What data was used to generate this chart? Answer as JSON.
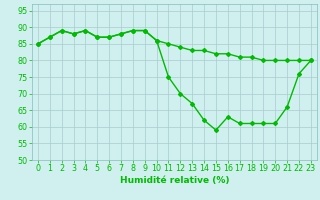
{
  "line1_x": [
    0,
    1,
    2,
    3,
    4,
    5,
    6,
    7,
    8,
    9,
    10,
    11,
    12,
    13,
    14,
    15,
    16,
    17,
    18,
    19,
    20,
    21,
    22,
    23
  ],
  "line1_y": [
    85,
    87,
    89,
    88,
    89,
    87,
    87,
    88,
    89,
    89,
    86,
    75,
    70,
    67,
    62,
    59,
    63,
    61,
    61,
    61,
    61,
    66,
    76,
    80
  ],
  "line2_x": [
    0,
    1,
    2,
    3,
    4,
    5,
    6,
    7,
    8,
    9,
    10,
    11,
    12,
    13,
    14,
    15,
    16,
    17,
    18,
    19,
    20,
    21,
    22,
    23
  ],
  "line2_y": [
    85,
    87,
    89,
    88,
    89,
    87,
    87,
    88,
    89,
    89,
    86,
    85,
    84,
    83,
    83,
    82,
    82,
    81,
    81,
    80,
    80,
    80,
    80,
    80
  ],
  "line_color": "#00bb00",
  "bg_color": "#d0f0f0",
  "grid_color_major": "#aacccc",
  "grid_color_minor": "#ccdddd",
  "xlabel": "Humidité relative (%)",
  "ylim": [
    50,
    97
  ],
  "xlim": [
    -0.5,
    23.5
  ],
  "yticks": [
    50,
    55,
    60,
    65,
    70,
    75,
    80,
    85,
    90,
    95
  ],
  "xticks": [
    0,
    1,
    2,
    3,
    4,
    5,
    6,
    7,
    8,
    9,
    10,
    11,
    12,
    13,
    14,
    15,
    16,
    17,
    18,
    19,
    20,
    21,
    22,
    23
  ],
  "xlabel_fontsize": 6.5,
  "tick_fontsize": 5.8,
  "line_width": 1.0,
  "marker": "D",
  "marker_size": 2.0,
  "tick_color": "#00bb00",
  "label_color": "#00bb00"
}
